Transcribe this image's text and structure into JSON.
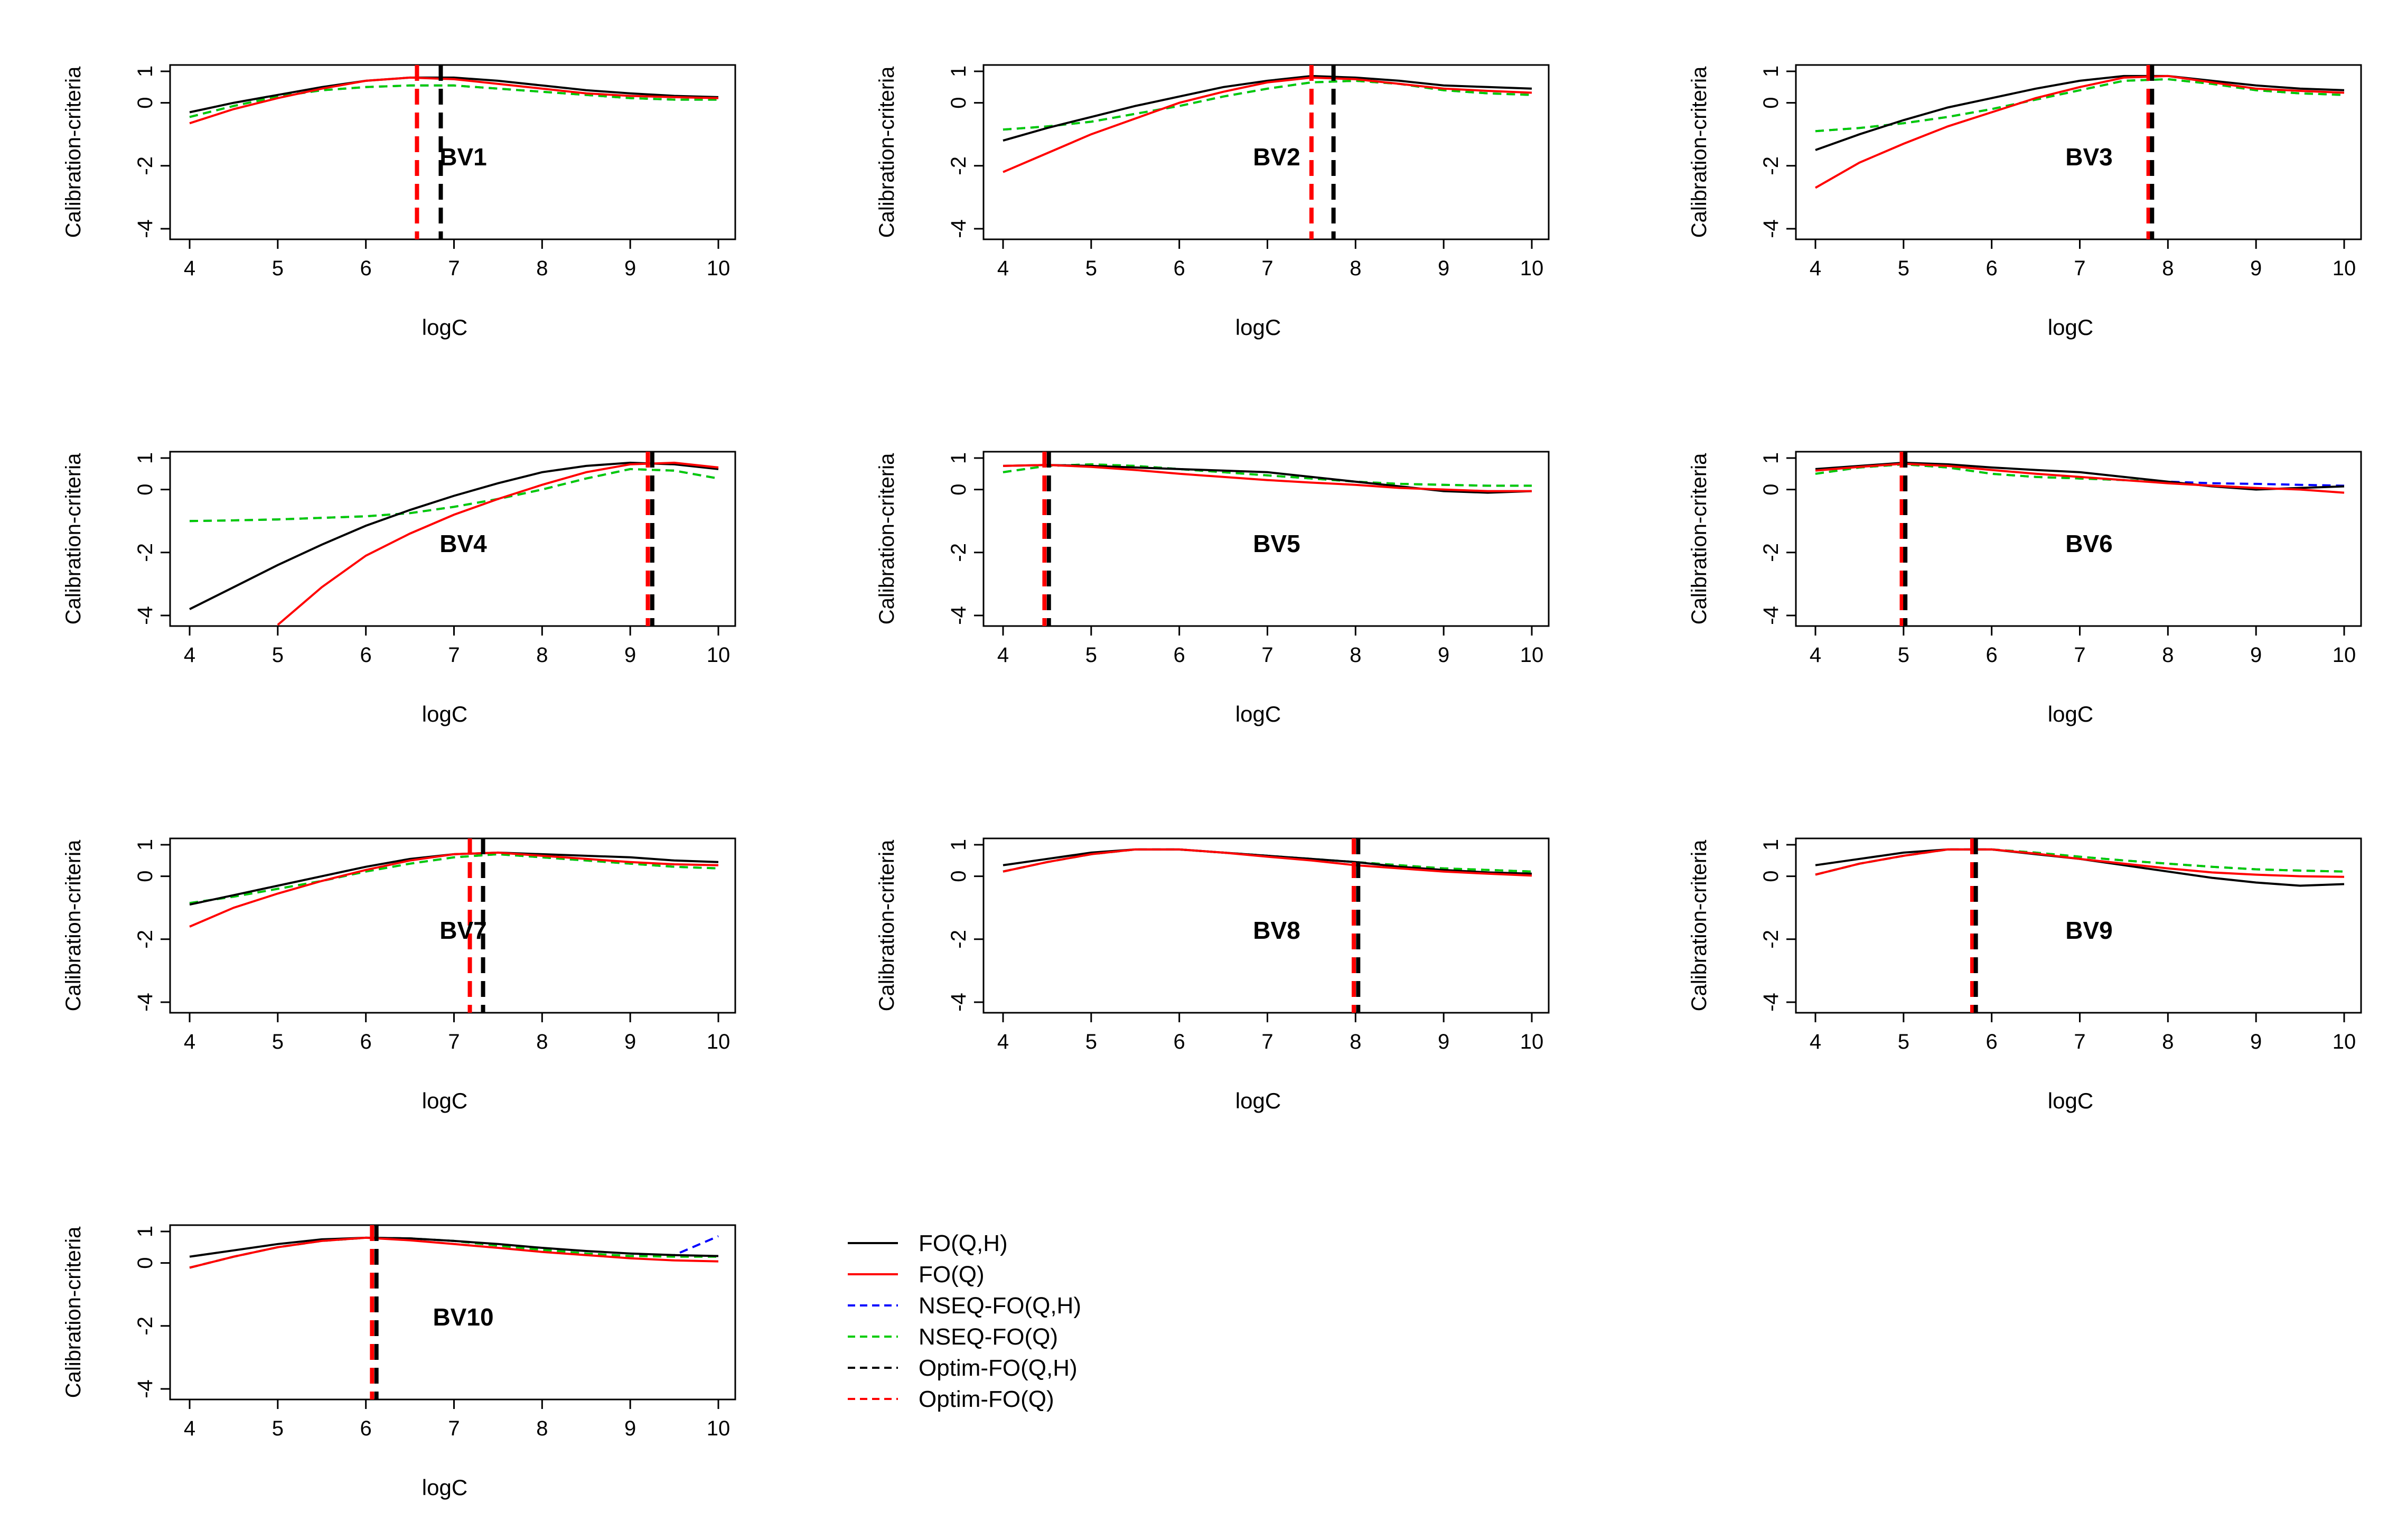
{
  "chart_data": {
    "type": "line",
    "xlabel": "logC",
    "ylabel": "Calibration-criteria",
    "xlim": [
      4,
      10
    ],
    "ylim": [
      -4,
      1
    ],
    "x_ticks": [
      4,
      5,
      6,
      7,
      8,
      9,
      10
    ],
    "y_ticks": [
      -4,
      -2,
      0,
      1
    ],
    "x": [
      4,
      4.5,
      5,
      5.5,
      6,
      6.5,
      7,
      7.5,
      8,
      8.5,
      9,
      9.5,
      10
    ],
    "legend": [
      {
        "name": "FO(Q,H)",
        "color": "#000000",
        "style": "solid"
      },
      {
        "name": "FO(Q)",
        "color": "#ff0000",
        "style": "solid"
      },
      {
        "name": "NSEQ-FO(Q,H)",
        "color": "#0000ff",
        "style": "dashed"
      },
      {
        "name": "NSEQ-FO(Q)",
        "color": "#00cc00",
        "style": "dashed"
      },
      {
        "name": "Optim-FO(Q,H)",
        "color": "#000000",
        "style": "dashed"
      },
      {
        "name": "Optim-FO(Q)",
        "color": "#ff0000",
        "style": "dashed"
      }
    ],
    "panels": [
      {
        "label": "BV1",
        "optim_qh": 6.85,
        "optim_q": 6.58,
        "series": {
          "FO(Q,H)": [
            -0.3,
            0.0,
            0.25,
            0.5,
            0.7,
            0.8,
            0.8,
            0.7,
            0.55,
            0.4,
            0.3,
            0.22,
            0.18
          ],
          "FO(Q)": [
            -0.65,
            -0.2,
            0.15,
            0.45,
            0.7,
            0.8,
            0.75,
            0.6,
            0.45,
            0.3,
            0.22,
            0.18,
            0.15
          ],
          "NSEQ-FO(Q,H)": [
            -0.45,
            -0.1,
            0.2,
            0.4,
            0.5,
            0.55,
            0.55,
            0.45,
            0.35,
            0.25,
            0.15,
            0.1,
            0.1
          ],
          "NSEQ-FO(Q)": [
            -0.45,
            -0.1,
            0.2,
            0.4,
            0.5,
            0.55,
            0.55,
            0.45,
            0.35,
            0.25,
            0.15,
            0.1,
            0.1
          ]
        }
      },
      {
        "label": "BV2",
        "optim_qh": 7.75,
        "optim_q": 7.5,
        "series": {
          "FO(Q,H)": [
            -1.2,
            -0.8,
            -0.45,
            -0.1,
            0.2,
            0.5,
            0.7,
            0.85,
            0.8,
            0.7,
            0.55,
            0.5,
            0.45
          ],
          "FO(Q)": [
            -2.2,
            -1.6,
            -1.0,
            -0.5,
            0.0,
            0.35,
            0.65,
            0.8,
            0.75,
            0.6,
            0.45,
            0.38,
            0.32
          ],
          "NSEQ-FO(Q,H)": [
            -0.85,
            -0.75,
            -0.6,
            -0.35,
            -0.1,
            0.2,
            0.45,
            0.65,
            0.7,
            0.6,
            0.4,
            0.3,
            0.25
          ],
          "NSEQ-FO(Q)": [
            -0.85,
            -0.75,
            -0.6,
            -0.35,
            -0.1,
            0.2,
            0.45,
            0.65,
            0.7,
            0.6,
            0.4,
            0.3,
            0.25
          ]
        }
      },
      {
        "label": "BV3",
        "optim_qh": 7.82,
        "optim_q": 7.78,
        "series": {
          "FO(Q,H)": [
            -1.5,
            -1.0,
            -0.55,
            -0.15,
            0.15,
            0.45,
            0.7,
            0.85,
            0.85,
            0.7,
            0.55,
            0.45,
            0.4
          ],
          "FO(Q)": [
            -2.7,
            -1.9,
            -1.3,
            -0.75,
            -0.3,
            0.15,
            0.5,
            0.8,
            0.85,
            0.65,
            0.45,
            0.38,
            0.32
          ],
          "NSEQ-FO(Q,H)": [
            -0.9,
            -0.8,
            -0.65,
            -0.45,
            -0.2,
            0.1,
            0.4,
            0.7,
            0.75,
            0.6,
            0.4,
            0.3,
            0.25
          ],
          "NSEQ-FO(Q)": [
            -0.9,
            -0.8,
            -0.65,
            -0.45,
            -0.2,
            0.1,
            0.4,
            0.7,
            0.75,
            0.6,
            0.4,
            0.3,
            0.25
          ]
        }
      },
      {
        "label": "BV4",
        "optim_qh": 9.25,
        "optim_q": 9.2,
        "series": {
          "FO(Q,H)": [
            -3.8,
            -3.1,
            -2.4,
            -1.75,
            -1.15,
            -0.65,
            -0.2,
            0.2,
            0.55,
            0.75,
            0.85,
            0.8,
            0.65
          ],
          "FO(Q)": [
            null,
            null,
            -4.3,
            -3.1,
            -2.1,
            -1.4,
            -0.8,
            -0.3,
            0.15,
            0.55,
            0.8,
            0.85,
            0.7
          ],
          "NSEQ-FO(Q,H)": [
            -1.0,
            -0.98,
            -0.95,
            -0.9,
            -0.85,
            -0.75,
            -0.55,
            -0.3,
            0.0,
            0.35,
            0.65,
            0.6,
            0.35
          ],
          "NSEQ-FO(Q)": [
            -1.0,
            -0.98,
            -0.95,
            -0.9,
            -0.85,
            -0.75,
            -0.55,
            -0.3,
            0.0,
            0.35,
            0.65,
            0.6,
            0.35
          ]
        }
      },
      {
        "label": "BV5",
        "optim_qh": 4.52,
        "optim_q": 4.47,
        "series": {
          "FO(Q,H)": [
            0.75,
            0.78,
            0.75,
            0.7,
            0.65,
            0.6,
            0.55,
            0.4,
            0.25,
            0.1,
            -0.05,
            -0.1,
            -0.05
          ],
          "FO(Q)": [
            0.75,
            0.78,
            0.72,
            0.62,
            0.5,
            0.4,
            0.3,
            0.22,
            0.15,
            0.05,
            0.0,
            -0.05,
            -0.05
          ],
          "NSEQ-FO(Q,H)": [
            0.55,
            0.75,
            0.8,
            0.75,
            0.65,
            0.55,
            0.45,
            0.35,
            0.25,
            0.18,
            0.15,
            0.12,
            0.12
          ],
          "NSEQ-FO(Q)": [
            0.55,
            0.75,
            0.8,
            0.75,
            0.65,
            0.55,
            0.45,
            0.35,
            0.25,
            0.18,
            0.15,
            0.12,
            0.12
          ]
        }
      },
      {
        "label": "BV6",
        "optim_qh": 5.02,
        "optim_q": 4.98,
        "series": {
          "FO(Q,H)": [
            0.65,
            0.75,
            0.85,
            0.8,
            0.7,
            0.62,
            0.55,
            0.4,
            0.25,
            0.1,
            0.0,
            0.05,
            0.1
          ],
          "FO(Q)": [
            0.6,
            0.72,
            0.82,
            0.75,
            0.62,
            0.5,
            0.4,
            0.3,
            0.2,
            0.12,
            0.05,
            0.0,
            -0.1
          ],
          "NSEQ-FO(Q,H)": [
            0.5,
            0.7,
            0.8,
            0.7,
            0.5,
            0.4,
            0.35,
            0.3,
            0.25,
            0.2,
            0.18,
            0.15,
            0.12
          ],
          "NSEQ-FO(Q)": [
            0.5,
            0.7,
            0.8,
            0.7,
            0.5,
            0.4,
            0.35,
            0.3,
            0.25,
            null,
            null,
            null,
            null
          ]
        }
      },
      {
        "label": "BV7",
        "optim_qh": 7.33,
        "optim_q": 7.18,
        "series": {
          "FO(Q,H)": [
            -0.9,
            -0.6,
            -0.3,
            0.0,
            0.3,
            0.55,
            0.7,
            0.75,
            0.7,
            0.65,
            0.6,
            0.5,
            0.45
          ],
          "FO(Q)": [
            -1.6,
            -1.0,
            -0.55,
            -0.15,
            0.2,
            0.5,
            0.7,
            0.75,
            0.65,
            0.55,
            0.45,
            0.38,
            0.35
          ],
          "NSEQ-FO(Q,H)": [
            -0.85,
            -0.65,
            -0.4,
            -0.15,
            0.15,
            0.4,
            0.6,
            0.7,
            0.6,
            0.5,
            0.4,
            0.3,
            0.25
          ],
          "NSEQ-FO(Q)": [
            -0.85,
            -0.65,
            -0.4,
            -0.15,
            0.15,
            0.4,
            0.6,
            0.7,
            0.6,
            0.5,
            0.4,
            0.3,
            0.25
          ]
        }
      },
      {
        "label": "BV8",
        "optim_qh": 8.03,
        "optim_q": 7.98,
        "series": {
          "FO(Q,H)": [
            0.35,
            0.55,
            0.75,
            0.85,
            0.85,
            0.75,
            0.65,
            0.55,
            0.45,
            0.3,
            0.2,
            0.12,
            0.08
          ],
          "FO(Q)": [
            0.15,
            0.45,
            0.7,
            0.85,
            0.85,
            0.75,
            0.62,
            0.5,
            0.35,
            0.25,
            0.15,
            0.08,
            0.02
          ],
          "NSEQ-FO(Q,H)": [
            0.15,
            0.45,
            0.7,
            0.85,
            0.85,
            0.75,
            0.65,
            0.55,
            0.45,
            0.35,
            0.25,
            0.2,
            0.15
          ],
          "NSEQ-FO(Q)": [
            0.15,
            0.45,
            0.7,
            0.85,
            0.85,
            0.75,
            0.65,
            0.55,
            0.45,
            0.35,
            0.25,
            0.2,
            0.15
          ]
        }
      },
      {
        "label": "BV9",
        "optim_qh": 5.82,
        "optim_q": 5.78,
        "series": {
          "FO(Q,H)": [
            0.35,
            0.55,
            0.75,
            0.85,
            0.85,
            0.7,
            0.55,
            0.35,
            0.15,
            -0.05,
            -0.2,
            -0.3,
            -0.25
          ],
          "FO(Q)": [
            0.05,
            0.4,
            0.65,
            0.85,
            0.85,
            0.72,
            0.55,
            0.4,
            0.25,
            0.12,
            0.05,
            0.0,
            -0.02
          ],
          "NSEQ-FO(Q,H)": [
            0.05,
            0.4,
            0.65,
            0.85,
            0.85,
            0.75,
            0.62,
            0.5,
            0.4,
            0.3,
            0.22,
            0.18,
            0.15
          ],
          "NSEQ-FO(Q)": [
            0.05,
            0.4,
            0.65,
            0.85,
            0.85,
            0.75,
            0.62,
            0.5,
            0.4,
            0.3,
            0.22,
            0.18,
            0.15
          ]
        }
      },
      {
        "label": "BV10",
        "optim_qh": 6.12,
        "optim_q": 6.07,
        "series": {
          "FO(Q,H)": [
            0.2,
            0.4,
            0.6,
            0.75,
            0.8,
            0.78,
            0.7,
            0.6,
            0.48,
            0.38,
            0.3,
            0.25,
            0.22
          ],
          "FO(Q)": [
            -0.15,
            0.2,
            0.5,
            0.7,
            0.8,
            0.72,
            0.6,
            0.48,
            0.35,
            0.25,
            0.15,
            0.08,
            0.05
          ],
          "NSEQ-FO(Q,H)": [
            -0.15,
            0.2,
            0.5,
            0.7,
            0.8,
            0.78,
            0.7,
            0.55,
            0.42,
            0.3,
            0.22,
            0.25,
            0.85
          ],
          "NSEQ-FO(Q)": [
            -0.15,
            0.2,
            0.5,
            0.7,
            0.8,
            0.78,
            0.7,
            0.55,
            0.42,
            0.3,
            0.22,
            0.2,
            0.2
          ]
        }
      }
    ]
  }
}
